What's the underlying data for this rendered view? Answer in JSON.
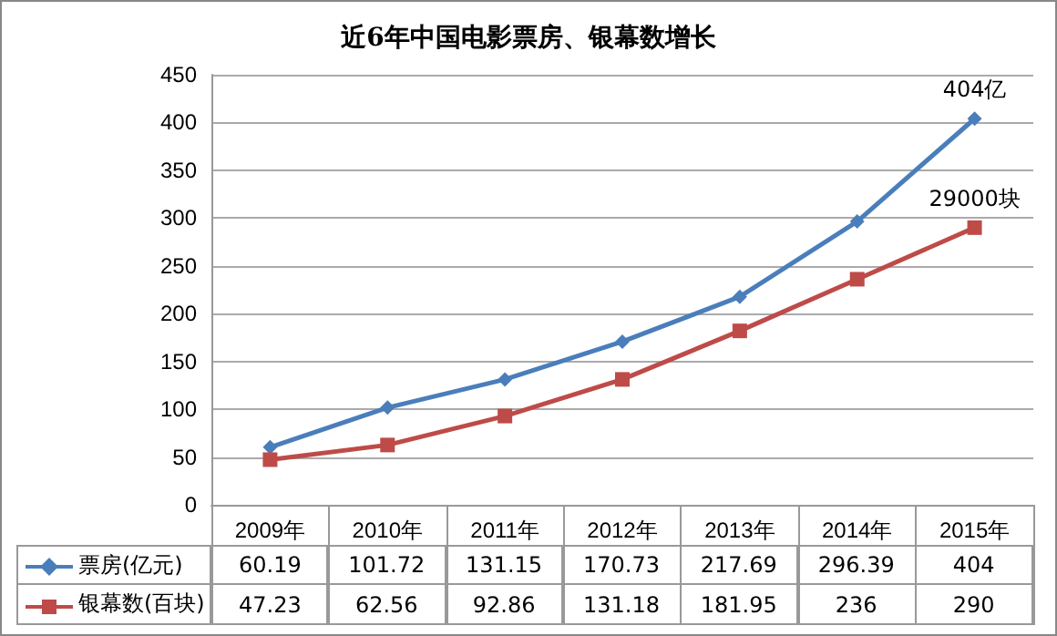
{
  "chart_data": {
    "type": "line",
    "title": "近6年中国电影票房、银幕数增长",
    "categories": [
      "2009年",
      "2010年",
      "2011年",
      "2012年",
      "2013年",
      "2014年",
      "2015年"
    ],
    "series": [
      {
        "name": "票房(亿元)",
        "color": "#4a7ebb",
        "marker": "diamond",
        "values": [
          60.19,
          101.72,
          131.15,
          170.73,
          217.69,
          296.39,
          404
        ]
      },
      {
        "name": "银幕数(百块)",
        "color": "#be4b48",
        "marker": "square",
        "values": [
          47.23,
          62.56,
          92.86,
          131.18,
          181.95,
          236,
          290
        ]
      }
    ],
    "data_labels": true,
    "annotations": [
      {
        "text": "404亿",
        "x": "2015年",
        "y": 404
      },
      {
        "text": "29000块",
        "x": "2015年",
        "y": 290
      }
    ],
    "ylim": [
      0,
      450
    ],
    "yticks": [
      0,
      50,
      100,
      150,
      200,
      250,
      300,
      350,
      400,
      450
    ],
    "grid": "y",
    "legend": "bottom left"
  }
}
